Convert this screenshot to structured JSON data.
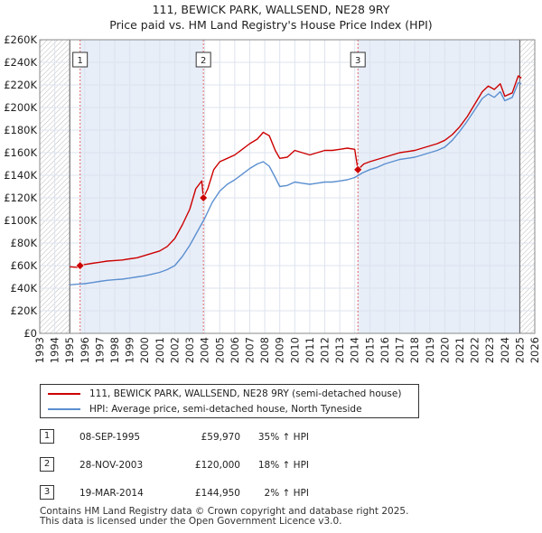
{
  "title": "111, BEWICK PARK, WALLSEND, NE28 9RY",
  "subtitle": "Price paid vs. HM Land Registry's House Price Index (HPI)",
  "legend": [
    {
      "label": "111, BEWICK PARK, WALLSEND, NE28 9RY (semi-detached house)",
      "color": "#cc0000"
    },
    {
      "label": "HPI: Average price, semi-detached house, North Tyneside",
      "color": "#5b8fd0"
    }
  ],
  "sales": [
    {
      "num": "1",
      "date": "08-SEP-1995",
      "price": "£59,970",
      "hpi": "35% ↑ HPI",
      "year": 1995.69,
      "value": 59970
    },
    {
      "num": "2",
      "date": "28-NOV-2003",
      "price": "£120,000",
      "hpi": "18% ↑ HPI",
      "year": 2003.91,
      "value": 120000
    },
    {
      "num": "3",
      "date": "19-MAR-2014",
      "price": "£144,950",
      "hpi": "2% ↑ HPI",
      "year": 2014.21,
      "value": 144950
    }
  ],
  "footer": {
    "line1": "Contains HM Land Registry data © Crown copyright and database right 2025.",
    "line2": "This data is licensed under the Open Government Licence v3.0."
  },
  "colors": {
    "price_line": "#cc0000",
    "hpi_line": "#5b8fd0",
    "sale_vline": "#e06666",
    "shade": "#e8eef8",
    "grid": "#dde3ee"
  },
  "chart_data": {
    "type": "line",
    "title": "111, BEWICK PARK, WALLSEND, NE28 9RY",
    "subtitle": "Price paid vs. HM Land Registry's House Price Index (HPI)",
    "xlabel": "",
    "ylabel": "",
    "xlim": [
      1993,
      2026
    ],
    "ylim": [
      0,
      260000
    ],
    "x_ticks": [
      1993,
      1994,
      1995,
      1996,
      1997,
      1998,
      1999,
      2000,
      2001,
      2002,
      2003,
      2004,
      2005,
      2006,
      2007,
      2008,
      2009,
      2010,
      2011,
      2012,
      2013,
      2014,
      2015,
      2016,
      2017,
      2018,
      2019,
      2020,
      2021,
      2022,
      2023,
      2024,
      2025,
      2026
    ],
    "y_ticks": [
      {
        "value": 0,
        "label": "£0"
      },
      {
        "value": 20000,
        "label": "£20K"
      },
      {
        "value": 40000,
        "label": "£40K"
      },
      {
        "value": 60000,
        "label": "£60K"
      },
      {
        "value": 80000,
        "label": "£80K"
      },
      {
        "value": 100000,
        "label": "£100K"
      },
      {
        "value": 120000,
        "label": "£120K"
      },
      {
        "value": 140000,
        "label": "£140K"
      },
      {
        "value": 160000,
        "label": "£160K"
      },
      {
        "value": 180000,
        "label": "£180K"
      },
      {
        "value": 200000,
        "label": "£200K"
      },
      {
        "value": 220000,
        "label": "£220K"
      },
      {
        "value": 240000,
        "label": "£240K"
      },
      {
        "value": 260000,
        "label": "£260K"
      }
    ],
    "grid": true,
    "hatched_periods": [
      [
        1993,
        1995.0
      ],
      [
        2025.0,
        2026
      ]
    ],
    "sale_markers": [
      {
        "label": "1",
        "x": 1995.69,
        "y": 59970
      },
      {
        "label": "2",
        "x": 2003.91,
        "y": 120000
      },
      {
        "label": "3",
        "x": 2014.21,
        "y": 144950
      }
    ],
    "series": [
      {
        "name": "111, BEWICK PARK, WALLSEND, NE28 9RY (semi-detached house)",
        "color": "#cc0000",
        "x": [
          1995.0,
          1995.5,
          1995.69,
          1996.0,
          1996.5,
          1997.0,
          1997.5,
          1998.0,
          1998.5,
          1999.0,
          1999.5,
          2000.0,
          2000.5,
          2001.0,
          2001.5,
          2002.0,
          2002.5,
          2003.0,
          2003.4,
          2003.8,
          2003.91,
          2004.2,
          2004.6,
          2005.0,
          2005.5,
          2006.0,
          2006.5,
          2007.0,
          2007.5,
          2007.9,
          2008.3,
          2008.7,
          2009.0,
          2009.5,
          2010.0,
          2010.5,
          2011.0,
          2011.5,
          2012.0,
          2012.5,
          2013.0,
          2013.5,
          2014.0,
          2014.21,
          2014.6,
          2015.0,
          2015.5,
          2016.0,
          2016.5,
          2017.0,
          2017.5,
          2018.0,
          2018.5,
          2019.0,
          2019.5,
          2020.0,
          2020.5,
          2021.0,
          2021.5,
          2022.0,
          2022.5,
          2022.9,
          2023.3,
          2023.7,
          2024.0,
          2024.5,
          2024.9,
          2025.1
        ],
        "y": [
          59000,
          58500,
          59970,
          61000,
          62000,
          63000,
          64000,
          64500,
          65000,
          66000,
          67000,
          69000,
          71000,
          73000,
          77000,
          84000,
          96000,
          110000,
          128000,
          135000,
          120000,
          128000,
          145000,
          152000,
          155000,
          158000,
          163000,
          168000,
          172000,
          178000,
          175000,
          162000,
          155000,
          156000,
          162000,
          160000,
          158000,
          160000,
          162000,
          162000,
          163000,
          164000,
          163000,
          144950,
          150000,
          152000,
          154000,
          156000,
          158000,
          160000,
          161000,
          162000,
          164000,
          166000,
          168000,
          171000,
          176000,
          183000,
          192000,
          203000,
          214000,
          219000,
          216000,
          221000,
          210000,
          213000,
          228000,
          226000
        ]
      },
      {
        "name": "HPI: Average price, semi-detached house, North Tyneside",
        "color": "#5b8fd0",
        "x": [
          1995.0,
          1995.5,
          1996.0,
          1996.5,
          1997.0,
          1997.5,
          1998.0,
          1998.5,
          1999.0,
          1999.5,
          2000.0,
          2000.5,
          2001.0,
          2001.5,
          2002.0,
          2002.5,
          2003.0,
          2003.5,
          2004.0,
          2004.5,
          2005.0,
          2005.5,
          2006.0,
          2006.5,
          2007.0,
          2007.5,
          2007.9,
          2008.3,
          2008.7,
          2009.0,
          2009.5,
          2010.0,
          2010.5,
          2011.0,
          2011.5,
          2012.0,
          2012.5,
          2013.0,
          2013.5,
          2014.0,
          2014.5,
          2015.0,
          2015.5,
          2016.0,
          2016.5,
          2017.0,
          2017.5,
          2018.0,
          2018.5,
          2019.0,
          2019.5,
          2020.0,
          2020.5,
          2021.0,
          2021.5,
          2022.0,
          2022.5,
          2022.9,
          2023.3,
          2023.7,
          2024.0,
          2024.5,
          2024.9,
          2025.1
        ],
        "y": [
          43000,
          43500,
          44000,
          45000,
          46000,
          47000,
          47500,
          48000,
          49000,
          50000,
          51000,
          52500,
          54000,
          56500,
          60000,
          68000,
          78000,
          90000,
          102000,
          116000,
          126000,
          132000,
          136000,
          141000,
          146000,
          150000,
          152000,
          148000,
          138000,
          130000,
          131000,
          134000,
          133000,
          132000,
          133000,
          134000,
          134000,
          135000,
          136000,
          138000,
          142000,
          145000,
          147000,
          150000,
          152000,
          154000,
          155000,
          156000,
          158000,
          160000,
          162000,
          165000,
          171000,
          179000,
          188000,
          198000,
          208000,
          212000,
          209000,
          214000,
          206000,
          209000,
          222000,
          221000
        ]
      }
    ]
  }
}
